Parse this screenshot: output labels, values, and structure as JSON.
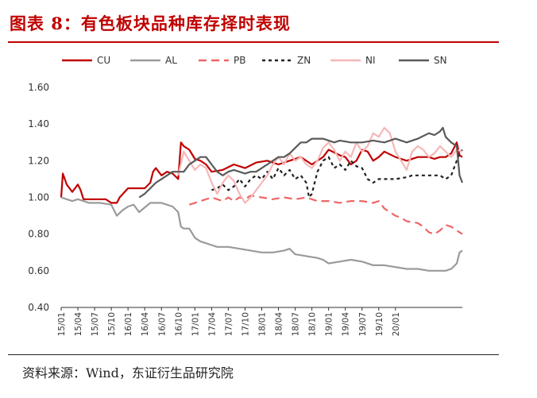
{
  "header": {
    "title": "图表 8：有色板块品种库存择时表现"
  },
  "footer": {
    "source": "资料来源：Wind，东证衍生品研究院"
  },
  "chart_data": {
    "type": "line",
    "ylim": [
      0.4,
      1.6
    ],
    "yticks": [
      "0.40",
      "0.60",
      "0.80",
      "1.00",
      "1.20",
      "1.40",
      "1.60"
    ],
    "xticks": [
      "15/01",
      "15/04",
      "15/07",
      "15/10",
      "16/01",
      "16/04",
      "16/07",
      "16/10",
      "17/01",
      "17/04",
      "17/07",
      "17/10",
      "18/01",
      "18/04",
      "18/07",
      "18/10",
      "19/01",
      "19/04",
      "19/07",
      "19/10",
      "20/01"
    ],
    "x_range": [
      "15/01",
      "20/03"
    ],
    "legend_position": "top",
    "series": [
      {
        "name": "CU",
        "color": "#c00000",
        "dash": "solid",
        "points": [
          [
            0,
            1.0
          ],
          [
            0.3,
            1.13
          ],
          [
            1,
            1.07
          ],
          [
            2,
            1.03
          ],
          [
            3,
            1.07
          ],
          [
            3.5,
            1.04
          ],
          [
            4,
            0.99
          ],
          [
            6,
            0.99
          ],
          [
            8,
            0.99
          ],
          [
            9,
            0.97
          ],
          [
            10,
            0.97
          ],
          [
            10.5,
            1.0
          ],
          [
            12,
            1.05
          ],
          [
            15,
            1.05
          ],
          [
            16,
            1.08
          ],
          [
            16.5,
            1.14
          ],
          [
            17,
            1.16
          ],
          [
            18,
            1.12
          ],
          [
            19,
            1.14
          ],
          [
            20,
            1.13
          ],
          [
            21,
            1.1
          ],
          [
            21.5,
            1.3
          ],
          [
            22,
            1.28
          ],
          [
            23,
            1.26
          ],
          [
            24,
            1.21
          ],
          [
            25,
            1.2
          ],
          [
            26,
            1.18
          ],
          [
            27,
            1.14
          ],
          [
            29,
            1.15
          ],
          [
            31,
            1.18
          ],
          [
            33,
            1.16
          ],
          [
            35,
            1.19
          ],
          [
            37,
            1.2
          ],
          [
            39,
            1.18
          ],
          [
            41,
            1.2
          ],
          [
            43,
            1.22
          ],
          [
            45,
            1.18
          ],
          [
            47,
            1.22
          ],
          [
            48,
            1.26
          ],
          [
            50,
            1.23
          ],
          [
            51,
            1.22
          ],
          [
            52,
            1.18
          ],
          [
            53,
            1.2
          ],
          [
            54,
            1.26
          ],
          [
            55,
            1.25
          ],
          [
            56,
            1.2
          ],
          [
            57,
            1.22
          ],
          [
            58,
            1.25
          ],
          [
            60,
            1.22
          ],
          [
            62,
            1.2
          ],
          [
            64,
            1.22
          ],
          [
            66,
            1.22
          ],
          [
            67,
            1.21
          ],
          [
            68,
            1.22
          ],
          [
            69,
            1.22
          ],
          [
            70,
            1.24
          ],
          [
            71,
            1.3
          ],
          [
            71.5,
            1.23
          ],
          [
            72,
            1.22
          ]
        ]
      },
      {
        "name": "AL",
        "color": "#9a9a9a",
        "dash": "solid",
        "points": [
          [
            0,
            1.0
          ],
          [
            1,
            0.99
          ],
          [
            2,
            0.98
          ],
          [
            3,
            0.99
          ],
          [
            4,
            0.98
          ],
          [
            5,
            0.97
          ],
          [
            6,
            0.97
          ],
          [
            7,
            0.97
          ],
          [
            9,
            0.96
          ],
          [
            10,
            0.9
          ],
          [
            11,
            0.93
          ],
          [
            12,
            0.95
          ],
          [
            13,
            0.96
          ],
          [
            14,
            0.92
          ],
          [
            16,
            0.97
          ],
          [
            18,
            0.97
          ],
          [
            20,
            0.95
          ],
          [
            21,
            0.92
          ],
          [
            21.5,
            0.84
          ],
          [
            22,
            0.83
          ],
          [
            23,
            0.83
          ],
          [
            24,
            0.78
          ],
          [
            25,
            0.76
          ],
          [
            26,
            0.75
          ],
          [
            27,
            0.74
          ],
          [
            28,
            0.73
          ],
          [
            30,
            0.73
          ],
          [
            32,
            0.72
          ],
          [
            34,
            0.71
          ],
          [
            36,
            0.7
          ],
          [
            38,
            0.7
          ],
          [
            40,
            0.71
          ],
          [
            41,
            0.72
          ],
          [
            42,
            0.69
          ],
          [
            44,
            0.68
          ],
          [
            46,
            0.67
          ],
          [
            47,
            0.66
          ],
          [
            48,
            0.64
          ],
          [
            50,
            0.65
          ],
          [
            52,
            0.66
          ],
          [
            54,
            0.65
          ],
          [
            56,
            0.63
          ],
          [
            58,
            0.63
          ],
          [
            60,
            0.62
          ],
          [
            62,
            0.61
          ],
          [
            64,
            0.61
          ],
          [
            66,
            0.6
          ],
          [
            68,
            0.6
          ],
          [
            69,
            0.6
          ],
          [
            70,
            0.61
          ],
          [
            71,
            0.64
          ],
          [
            71.5,
            0.7
          ],
          [
            72,
            0.71
          ]
        ]
      },
      {
        "name": "PB",
        "color": "#ee6666",
        "dash": "10,6",
        "points": [
          [
            23,
            0.96
          ],
          [
            24,
            0.97
          ],
          [
            25,
            0.98
          ],
          [
            26,
            0.99
          ],
          [
            27,
            1.0
          ],
          [
            28,
            0.99
          ],
          [
            29,
            0.98
          ],
          [
            30,
            1.0
          ],
          [
            31,
            0.98
          ],
          [
            32,
            1.0
          ],
          [
            33,
            0.99
          ],
          [
            34,
            1.01
          ],
          [
            36,
            1.0
          ],
          [
            38,
            0.99
          ],
          [
            40,
            1.0
          ],
          [
            42,
            0.99
          ],
          [
            44,
            1.0
          ],
          [
            46,
            0.98
          ],
          [
            48,
            0.98
          ],
          [
            50,
            0.97
          ],
          [
            52,
            0.98
          ],
          [
            54,
            0.98
          ],
          [
            56,
            0.97
          ],
          [
            57,
            0.98
          ],
          [
            58,
            0.94
          ],
          [
            59,
            0.92
          ],
          [
            60,
            0.9
          ],
          [
            61,
            0.89
          ],
          [
            62,
            0.87
          ],
          [
            64,
            0.86
          ],
          [
            65,
            0.84
          ],
          [
            66,
            0.81
          ],
          [
            67,
            0.8
          ],
          [
            68,
            0.82
          ],
          [
            69,
            0.85
          ],
          [
            70,
            0.84
          ],
          [
            71,
            0.82
          ],
          [
            72,
            0.8
          ]
        ]
      },
      {
        "name": "ZN",
        "color": "#222222",
        "dash": "4,4",
        "points": [
          [
            27,
            1.04
          ],
          [
            28,
            1.05
          ],
          [
            29,
            1.07
          ],
          [
            30,
            1.04
          ],
          [
            31,
            1.06
          ],
          [
            32,
            1.1
          ],
          [
            33,
            1.06
          ],
          [
            34,
            1.1
          ],
          [
            35,
            1.12
          ],
          [
            36,
            1.1
          ],
          [
            37,
            1.14
          ],
          [
            38,
            1.1
          ],
          [
            39,
            1.16
          ],
          [
            40,
            1.12
          ],
          [
            41,
            1.15
          ],
          [
            42,
            1.1
          ],
          [
            43,
            1.12
          ],
          [
            44,
            1.08
          ],
          [
            44.5,
            1.0
          ],
          [
            45,
            1.02
          ],
          [
            46,
            1.14
          ],
          [
            47,
            1.2
          ],
          [
            48,
            1.22
          ],
          [
            49,
            1.16
          ],
          [
            50,
            1.18
          ],
          [
            51,
            1.15
          ],
          [
            52,
            1.2
          ],
          [
            53,
            1.17
          ],
          [
            54,
            1.16
          ],
          [
            55,
            1.1
          ],
          [
            56,
            1.08
          ],
          [
            57,
            1.1
          ],
          [
            58,
            1.1
          ],
          [
            60,
            1.1
          ],
          [
            62,
            1.11
          ],
          [
            63,
            1.12
          ],
          [
            64,
            1.12
          ],
          [
            66,
            1.12
          ],
          [
            68,
            1.12
          ],
          [
            69,
            1.1
          ],
          [
            70,
            1.12
          ],
          [
            71,
            1.2
          ],
          [
            71.5,
            1.24
          ],
          [
            72,
            1.26
          ]
        ]
      },
      {
        "name": "NI",
        "color": "#f6b7b7",
        "dash": "solid",
        "points": [
          [
            21,
            1.12
          ],
          [
            22,
            1.25
          ],
          [
            23,
            1.2
          ],
          [
            24,
            1.15
          ],
          [
            25,
            1.18
          ],
          [
            26,
            1.16
          ],
          [
            27,
            1.08
          ],
          [
            28,
            1.02
          ],
          [
            29,
            1.08
          ],
          [
            30,
            1.12
          ],
          [
            31,
            1.09
          ],
          [
            32,
            1.02
          ],
          [
            33,
            0.97
          ],
          [
            34,
            1.0
          ],
          [
            35,
            1.04
          ],
          [
            36,
            1.08
          ],
          [
            37,
            1.12
          ],
          [
            38,
            1.18
          ],
          [
            39,
            1.22
          ],
          [
            40,
            1.18
          ],
          [
            41,
            1.24
          ],
          [
            42,
            1.2
          ],
          [
            43,
            1.22
          ],
          [
            44,
            1.18
          ],
          [
            45,
            1.16
          ],
          [
            46,
            1.2
          ],
          [
            47,
            1.27
          ],
          [
            48,
            1.3
          ],
          [
            49,
            1.26
          ],
          [
            50,
            1.2
          ],
          [
            51,
            1.25
          ],
          [
            52,
            1.22
          ],
          [
            53,
            1.3
          ],
          [
            54,
            1.25
          ],
          [
            55,
            1.28
          ],
          [
            56,
            1.35
          ],
          [
            57,
            1.33
          ],
          [
            58,
            1.38
          ],
          [
            59,
            1.35
          ],
          [
            60,
            1.25
          ],
          [
            61,
            1.2
          ],
          [
            62,
            1.15
          ],
          [
            63,
            1.25
          ],
          [
            64,
            1.28
          ],
          [
            65,
            1.26
          ],
          [
            66,
            1.22
          ],
          [
            67,
            1.24
          ],
          [
            68,
            1.28
          ],
          [
            69,
            1.25
          ],
          [
            70,
            1.22
          ],
          [
            71,
            1.26
          ],
          [
            72,
            1.25
          ]
        ]
      },
      {
        "name": "SN",
        "color": "#595959",
        "dash": "solid",
        "points": [
          [
            14,
            1.0
          ],
          [
            15,
            1.02
          ],
          [
            16,
            1.05
          ],
          [
            17,
            1.08
          ],
          [
            18,
            1.1
          ],
          [
            19,
            1.12
          ],
          [
            20,
            1.14
          ],
          [
            22,
            1.14
          ],
          [
            23,
            1.18
          ],
          [
            24,
            1.2
          ],
          [
            25,
            1.22
          ],
          [
            26,
            1.22
          ],
          [
            27,
            1.18
          ],
          [
            28,
            1.14
          ],
          [
            29,
            1.12
          ],
          [
            30,
            1.14
          ],
          [
            31,
            1.15
          ],
          [
            32,
            1.14
          ],
          [
            33,
            1.13
          ],
          [
            34,
            1.14
          ],
          [
            35,
            1.14
          ],
          [
            36,
            1.16
          ],
          [
            37,
            1.18
          ],
          [
            38,
            1.2
          ],
          [
            39,
            1.22
          ],
          [
            40,
            1.22
          ],
          [
            41,
            1.24
          ],
          [
            42,
            1.27
          ],
          [
            43,
            1.3
          ],
          [
            44,
            1.3
          ],
          [
            45,
            1.32
          ],
          [
            47,
            1.32
          ],
          [
            49,
            1.3
          ],
          [
            50,
            1.31
          ],
          [
            52,
            1.3
          ],
          [
            54,
            1.3
          ],
          [
            56,
            1.31
          ],
          [
            58,
            1.3
          ],
          [
            60,
            1.32
          ],
          [
            62,
            1.3
          ],
          [
            64,
            1.32
          ],
          [
            66,
            1.35
          ],
          [
            67,
            1.34
          ],
          [
            68,
            1.36
          ],
          [
            68.5,
            1.38
          ],
          [
            69,
            1.33
          ],
          [
            70,
            1.3
          ],
          [
            71,
            1.28
          ],
          [
            71.5,
            1.12
          ],
          [
            72,
            1.08
          ]
        ]
      }
    ]
  }
}
